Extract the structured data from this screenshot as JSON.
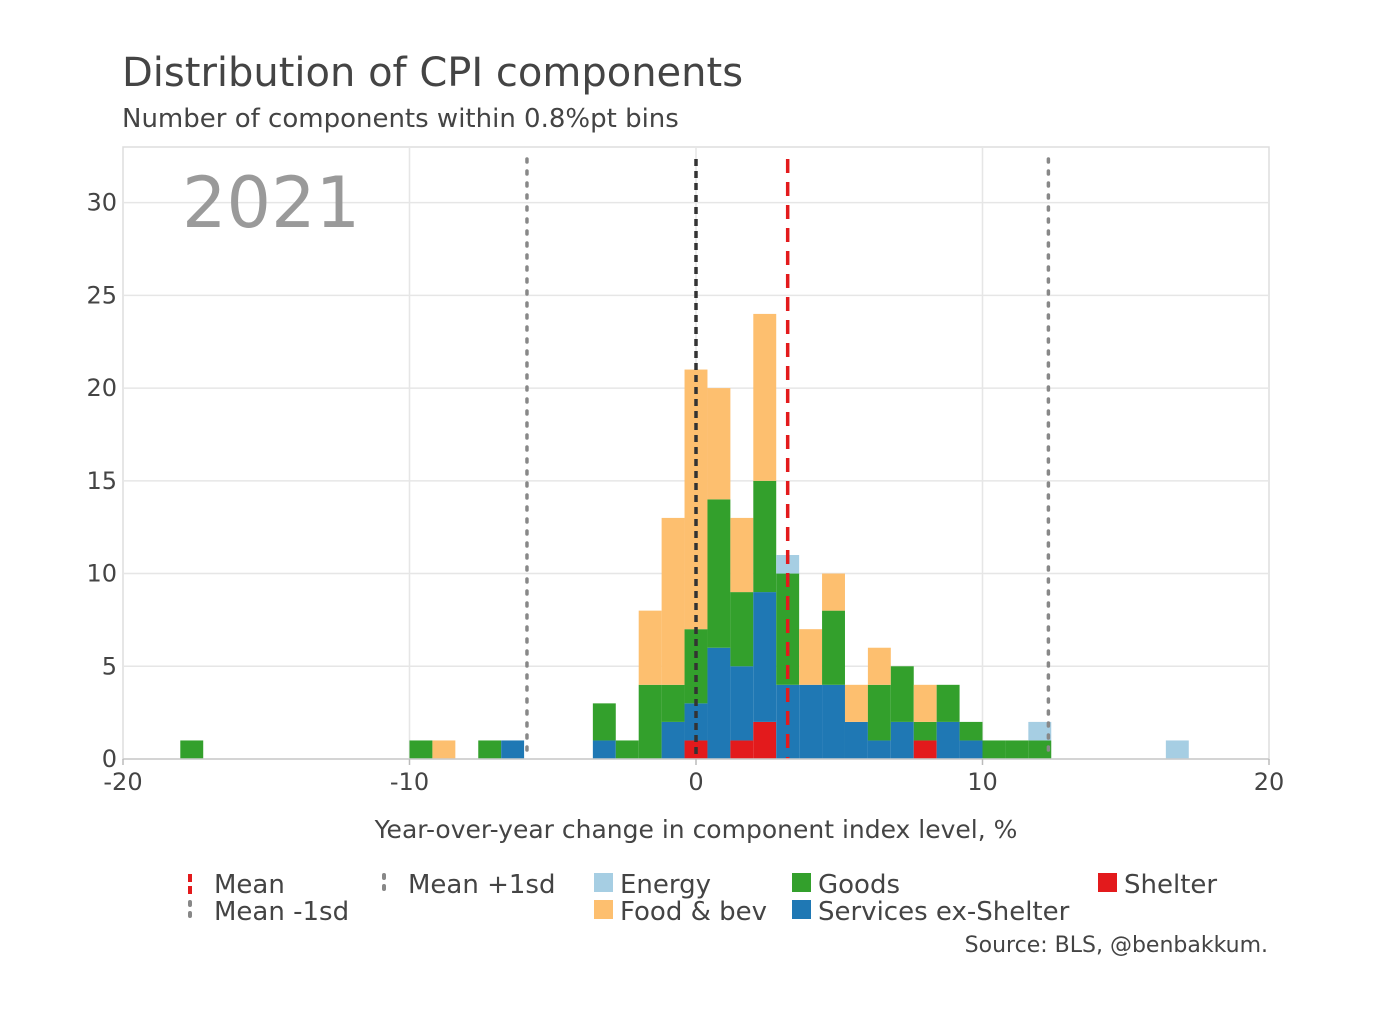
{
  "chart_data": {
    "type": "bar",
    "stacked": true,
    "title": "Distribution of CPI components",
    "subtitle": "Number of components within 0.8%pt bins",
    "annotation": "2021",
    "xlabel": "Year-over-year change in component index level, %",
    "ylabel": "",
    "xlim": [
      -20,
      20
    ],
    "ylim": [
      0,
      33
    ],
    "x_ticks": [
      -20,
      -10,
      0,
      10,
      20
    ],
    "y_ticks": [
      0,
      5,
      10,
      15,
      20,
      25,
      30
    ],
    "x_tick_labels": [
      "-20",
      "-10",
      "0",
      "10",
      "20"
    ],
    "y_tick_labels": [
      "0",
      "5",
      "10",
      "15",
      "20",
      "25",
      "30"
    ],
    "grid": true,
    "bin_width": 0.8,
    "bin_starts": [
      -18.0,
      -10.0,
      -9.2,
      -7.6,
      -6.8,
      -3.6,
      -2.8,
      -2.0,
      -1.2,
      -0.4,
      0.4,
      1.2,
      2.0,
      2.8,
      3.6,
      4.4,
      5.2,
      6.0,
      6.8,
      7.6,
      8.4,
      9.2,
      10.0,
      10.8,
      11.6,
      16.4
    ],
    "series": [
      {
        "name": "Shelter",
        "color": "#e31a1c",
        "values": [
          0,
          0,
          0,
          0,
          0,
          0,
          0,
          0,
          0,
          1,
          0,
          1,
          2,
          0,
          0,
          0,
          0,
          0,
          0,
          1,
          0,
          0,
          0,
          0,
          0,
          0
        ]
      },
      {
        "name": "Services ex-Shelter",
        "color": "#1f78b4",
        "values": [
          0,
          0,
          0,
          0,
          1,
          1,
          0,
          0,
          2,
          2,
          6,
          4,
          7,
          4,
          4,
          4,
          2,
          1,
          2,
          0,
          2,
          1,
          0,
          0,
          0,
          0
        ]
      },
      {
        "name": "Goods",
        "color": "#33a02c",
        "values": [
          1,
          1,
          0,
          1,
          0,
          2,
          1,
          4,
          2,
          4,
          8,
          4,
          6,
          6,
          0,
          4,
          0,
          3,
          3,
          1,
          2,
          1,
          1,
          1,
          1,
          0
        ]
      },
      {
        "name": "Food & bev",
        "color": "#fdbf6f",
        "values": [
          0,
          0,
          1,
          0,
          0,
          0,
          0,
          4,
          9,
          14,
          6,
          4,
          9,
          0,
          3,
          2,
          2,
          2,
          0,
          2,
          0,
          0,
          0,
          0,
          0,
          0
        ]
      },
      {
        "name": "Energy",
        "color": "#a6cee3",
        "values": [
          0,
          0,
          0,
          0,
          0,
          0,
          0,
          0,
          0,
          0,
          0,
          0,
          0,
          1,
          0,
          0,
          0,
          0,
          0,
          0,
          0,
          0,
          0,
          0,
          1,
          1
        ]
      }
    ],
    "reference_lines": [
      {
        "name": "Mean",
        "x": 3.2,
        "color": "#e31a1c",
        "style": "dashed"
      },
      {
        "name": "Mean +1sd",
        "x": 12.3,
        "color": "#888888",
        "style": "dotted"
      },
      {
        "name": "Mean -1sd",
        "x": -5.9,
        "color": "#888888",
        "style": "dotted"
      },
      {
        "name": "",
        "x": 0,
        "color": "#333333",
        "style": "dashed"
      }
    ],
    "legend": {
      "placement": "bottom",
      "items": [
        {
          "label": "Mean",
          "color": "#e31a1c",
          "symbol": "dash"
        },
        {
          "label": "Mean +1sd",
          "color": "#888888",
          "symbol": "dot"
        },
        {
          "label": "Energy",
          "color": "#a6cee3",
          "symbol": "square"
        },
        {
          "label": "Goods",
          "color": "#33a02c",
          "symbol": "square"
        },
        {
          "label": "Shelter",
          "color": "#e31a1c",
          "symbol": "square"
        },
        {
          "label": "Mean -1sd",
          "color": "#888888",
          "symbol": "dot"
        },
        {
          "label": "Food & bev",
          "color": "#fdbf6f",
          "symbol": "square"
        },
        {
          "label": "Services ex-Shelter",
          "color": "#1f78b4",
          "symbol": "square"
        }
      ]
    },
    "source": "Source: BLS, @benbakkum."
  }
}
